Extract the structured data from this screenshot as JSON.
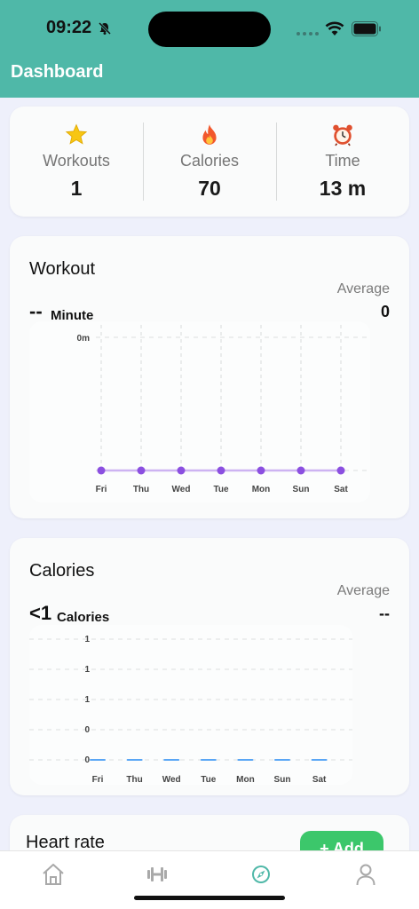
{
  "status_bar": {
    "time": "09:22"
  },
  "header": {
    "title": "Dashboard"
  },
  "stats": [
    {
      "icon": "star-icon",
      "label": "Workouts",
      "value": "1"
    },
    {
      "icon": "fire-icon",
      "label": "Calories",
      "value": "70"
    },
    {
      "icon": "alarm-clock-icon",
      "label": "Time",
      "value": "13 m"
    }
  ],
  "workout_card": {
    "title": "Workout",
    "value": "--",
    "unit": "Minute",
    "average_label": "Average",
    "average_value": "0"
  },
  "calories_card": {
    "title": "Calories",
    "value": "<1",
    "unit": "Calories",
    "average_label": "Average",
    "average_value": "--"
  },
  "heart_card": {
    "title": "Heart rate",
    "add_label": "+ Add"
  },
  "tabs": [
    "home-icon",
    "dumbbell-icon",
    "compass-icon",
    "profile-icon"
  ],
  "colors": {
    "accent": "#4fb8a8",
    "workout_line": "#8b4fe0",
    "calorie_bar": "#5aa6f5",
    "add_button": "#3cc76b"
  },
  "chart_data": [
    {
      "type": "line",
      "categories": [
        "Fri",
        "Thu",
        "Wed",
        "Tue",
        "Mon",
        "Sun",
        "Sat"
      ],
      "values": [
        0,
        0,
        0,
        0,
        0,
        0,
        0
      ],
      "y_tick_labels": [
        "0m"
      ],
      "grid": true
    },
    {
      "type": "bar",
      "categories": [
        "Fri",
        "Thu",
        "Wed",
        "Tue",
        "Mon",
        "Sun",
        "Sat"
      ],
      "values": [
        0,
        0,
        0,
        0,
        0,
        0,
        0
      ],
      "y_tick_labels": [
        "1",
        "1",
        "1",
        "0",
        "0"
      ],
      "grid": true
    }
  ]
}
